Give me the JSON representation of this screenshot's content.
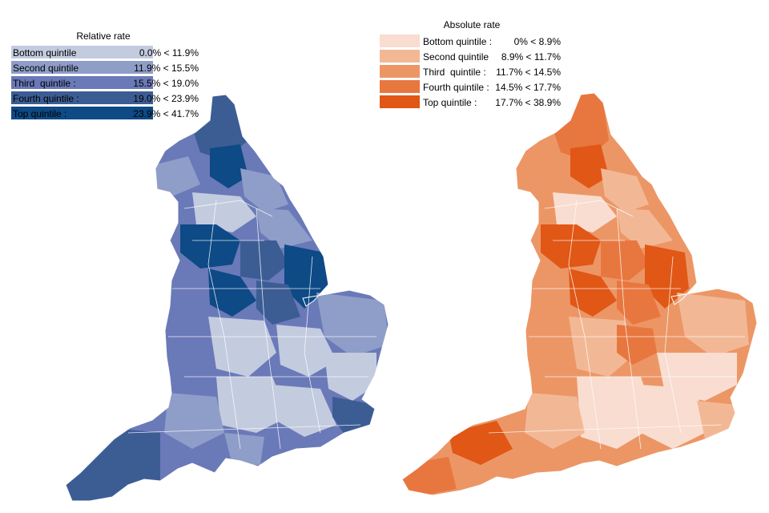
{
  "maps": [
    {
      "id": "relative",
      "title": "Relative rate",
      "legend": [
        {
          "label": "Bottom quintile",
          "range": "0.0% < 11.9%",
          "color": "#c3cbdf"
        },
        {
          "label": "Second quintile",
          "range": "11.9% < 15.5%",
          "color": "#8f9dc9"
        },
        {
          "label": "Third  quintile :",
          "range": "15.5% < 19.0%",
          "color": "#6a79b8"
        },
        {
          "label": "Fourth quintile :",
          "range": "19.0% < 23.9%",
          "color": "#3c5d94"
        },
        {
          "label": "Top quintile :",
          "range": "23.9% < 41.7%",
          "color": "#0d4a86"
        }
      ]
    },
    {
      "id": "absolute",
      "title": "Absolute rate",
      "legend": [
        {
          "label": "Bottom quintile :",
          "range": "0% < 8.9%",
          "color": "#f9ddd0"
        },
        {
          "label": "Second quintile",
          "range": "8.9% < 11.7%",
          "color": "#f2b896"
        },
        {
          "label": "Third  quintile :",
          "range": "11.7% < 14.5%",
          "color": "#ec9666"
        },
        {
          "label": "Fourth quintile :",
          "range": "14.5% < 17.7%",
          "color": "#e8773f"
        },
        {
          "label": "Top quintile :",
          "range": "17.7% < 38.9%",
          "color": "#e05716"
        }
      ]
    }
  ]
}
